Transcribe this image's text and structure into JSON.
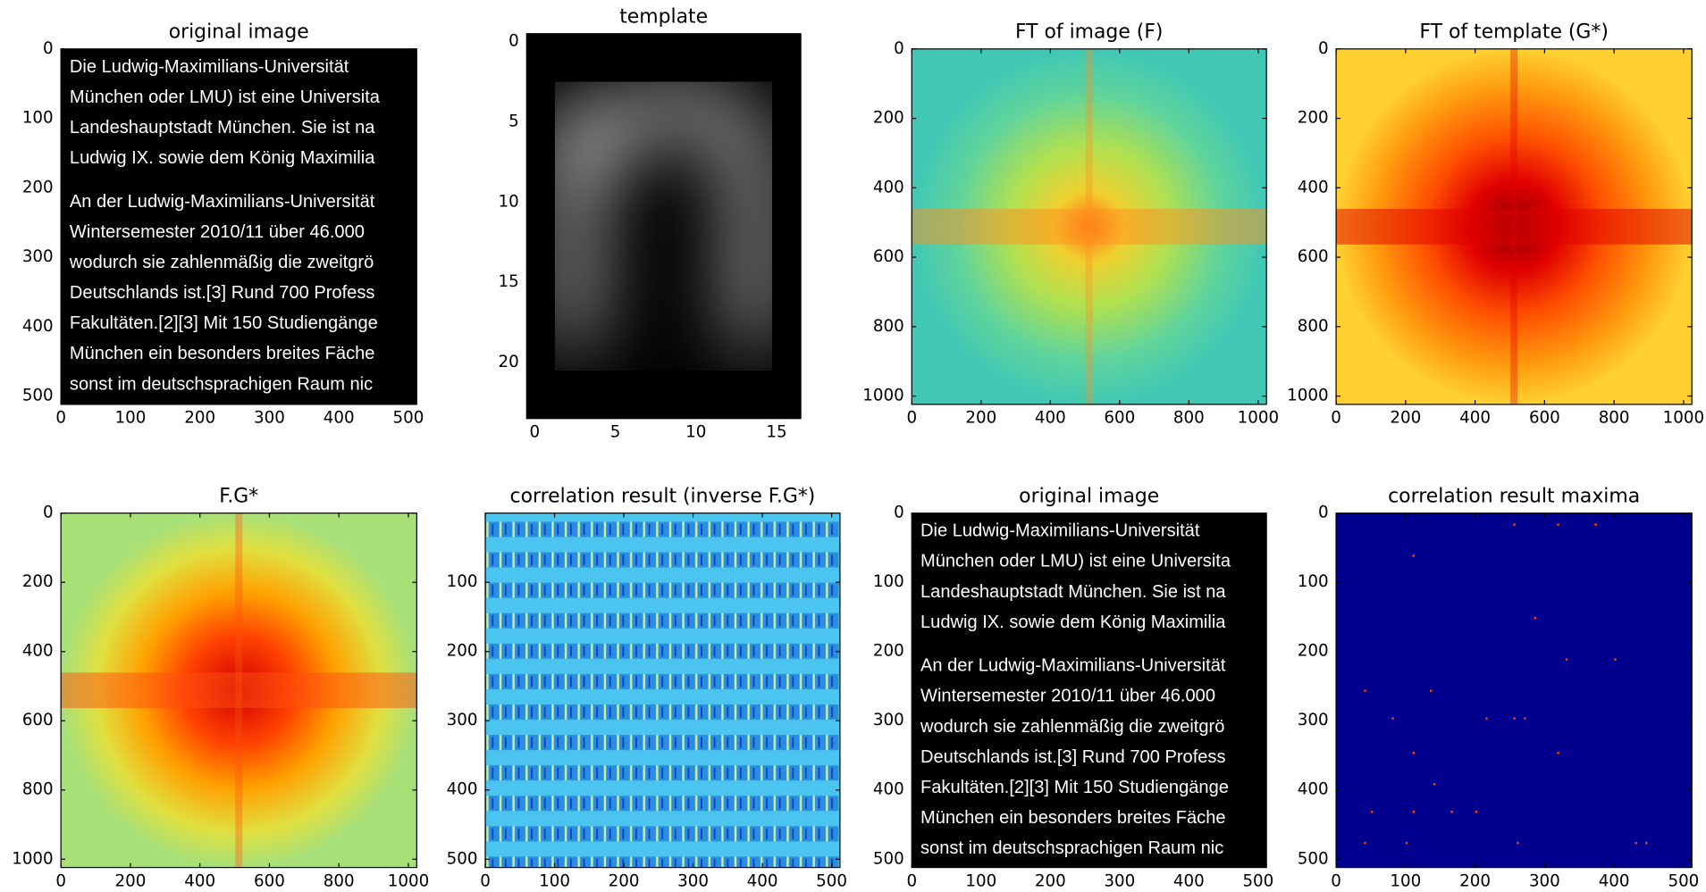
{
  "chart_data": [
    {
      "type": "image",
      "title": "original image",
      "xlim": [
        0,
        512
      ],
      "ylim": [
        512,
        0
      ],
      "xticks": [
        0,
        100,
        200,
        300,
        400,
        500
      ],
      "yticks": [
        0,
        100,
        200,
        300,
        400,
        500
      ],
      "image_text": [
        "Die Ludwig-Maximilians-Universität",
        "München oder LMU) ist eine Universita",
        "Landeshauptstadt München. Sie ist na",
        "Ludwig IX. sowie dem König Maximilia",
        "An der Ludwig-Maximilians-Universität",
        "Wintersemester 2010/11 über 46.000",
        "wodurch sie zahlenmäßig die zweitgrö",
        "Deutschlands ist.[3] Rund 700 Profess",
        "Fakultäten.[2][3] Mit 150 Studiengänge",
        "München ein besonders breites Fäche",
        "sonst im deutschsprachigen Raum nic"
      ]
    },
    {
      "type": "image",
      "title": "template",
      "xlim": [
        -0.5,
        16.5
      ],
      "ylim": [
        23.5,
        -0.5
      ],
      "xticks": [
        0,
        5,
        10,
        15
      ],
      "yticks": [
        0,
        5,
        10,
        15,
        20
      ]
    },
    {
      "type": "image",
      "title": "FT of image (F)",
      "xlim": [
        0,
        1024
      ],
      "ylim": [
        1024,
        0
      ],
      "xticks": [
        0,
        200,
        400,
        600,
        800,
        1000
      ],
      "yticks": [
        0,
        200,
        400,
        600,
        800,
        1000
      ]
    },
    {
      "type": "image",
      "title": "FT of template (G*)",
      "xlim": [
        0,
        1024
      ],
      "ylim": [
        1024,
        0
      ],
      "xticks": [
        0,
        200,
        400,
        600,
        800,
        1000
      ],
      "yticks": [
        0,
        200,
        400,
        600,
        800,
        1000
      ]
    },
    {
      "type": "image",
      "title": "F.G*",
      "xlim": [
        0,
        1024
      ],
      "ylim": [
        1024,
        0
      ],
      "xticks": [
        0,
        200,
        400,
        600,
        800,
        1000
      ],
      "yticks": [
        0,
        200,
        400,
        600,
        800,
        1000
      ]
    },
    {
      "type": "image",
      "title": "correlation result (inverse F.G*)",
      "xlim": [
        0,
        512
      ],
      "ylim": [
        512,
        0
      ],
      "xticks": [
        0,
        100,
        200,
        300,
        400,
        500
      ],
      "yticks": [
        100,
        200,
        300,
        400,
        500
      ]
    },
    {
      "type": "image",
      "title": "original image",
      "xlim": [
        0,
        512
      ],
      "ylim": [
        512,
        0
      ],
      "xticks": [
        0,
        100,
        200,
        300,
        400,
        500
      ],
      "yticks": [
        0,
        100,
        200,
        300,
        400,
        500
      ],
      "image_text": [
        "Die Ludwig-Maximilians-Universität",
        "München oder LMU) ist eine Universita",
        "Landeshauptstadt München. Sie ist na",
        "Ludwig IX. sowie dem König Maximilia",
        "An der Ludwig-Maximilians-Universität",
        "Wintersemester 2010/11 über 46.000",
        "wodurch sie zahlenmäßig die zweitgrö",
        "Deutschlands ist.[3] Rund 700 Profess",
        "Fakultäten.[2][3] Mit 150 Studiengänge",
        "München ein besonders breites Fäche",
        "sonst im deutschsprachigen Raum nic"
      ]
    },
    {
      "type": "image",
      "title": "correlation result maxima",
      "xlim": [
        0,
        512
      ],
      "ylim": [
        512,
        0
      ],
      "xticks": [
        0,
        100,
        200,
        300,
        400,
        500
      ],
      "yticks": [
        0,
        100,
        200,
        300,
        400,
        500
      ]
    }
  ]
}
